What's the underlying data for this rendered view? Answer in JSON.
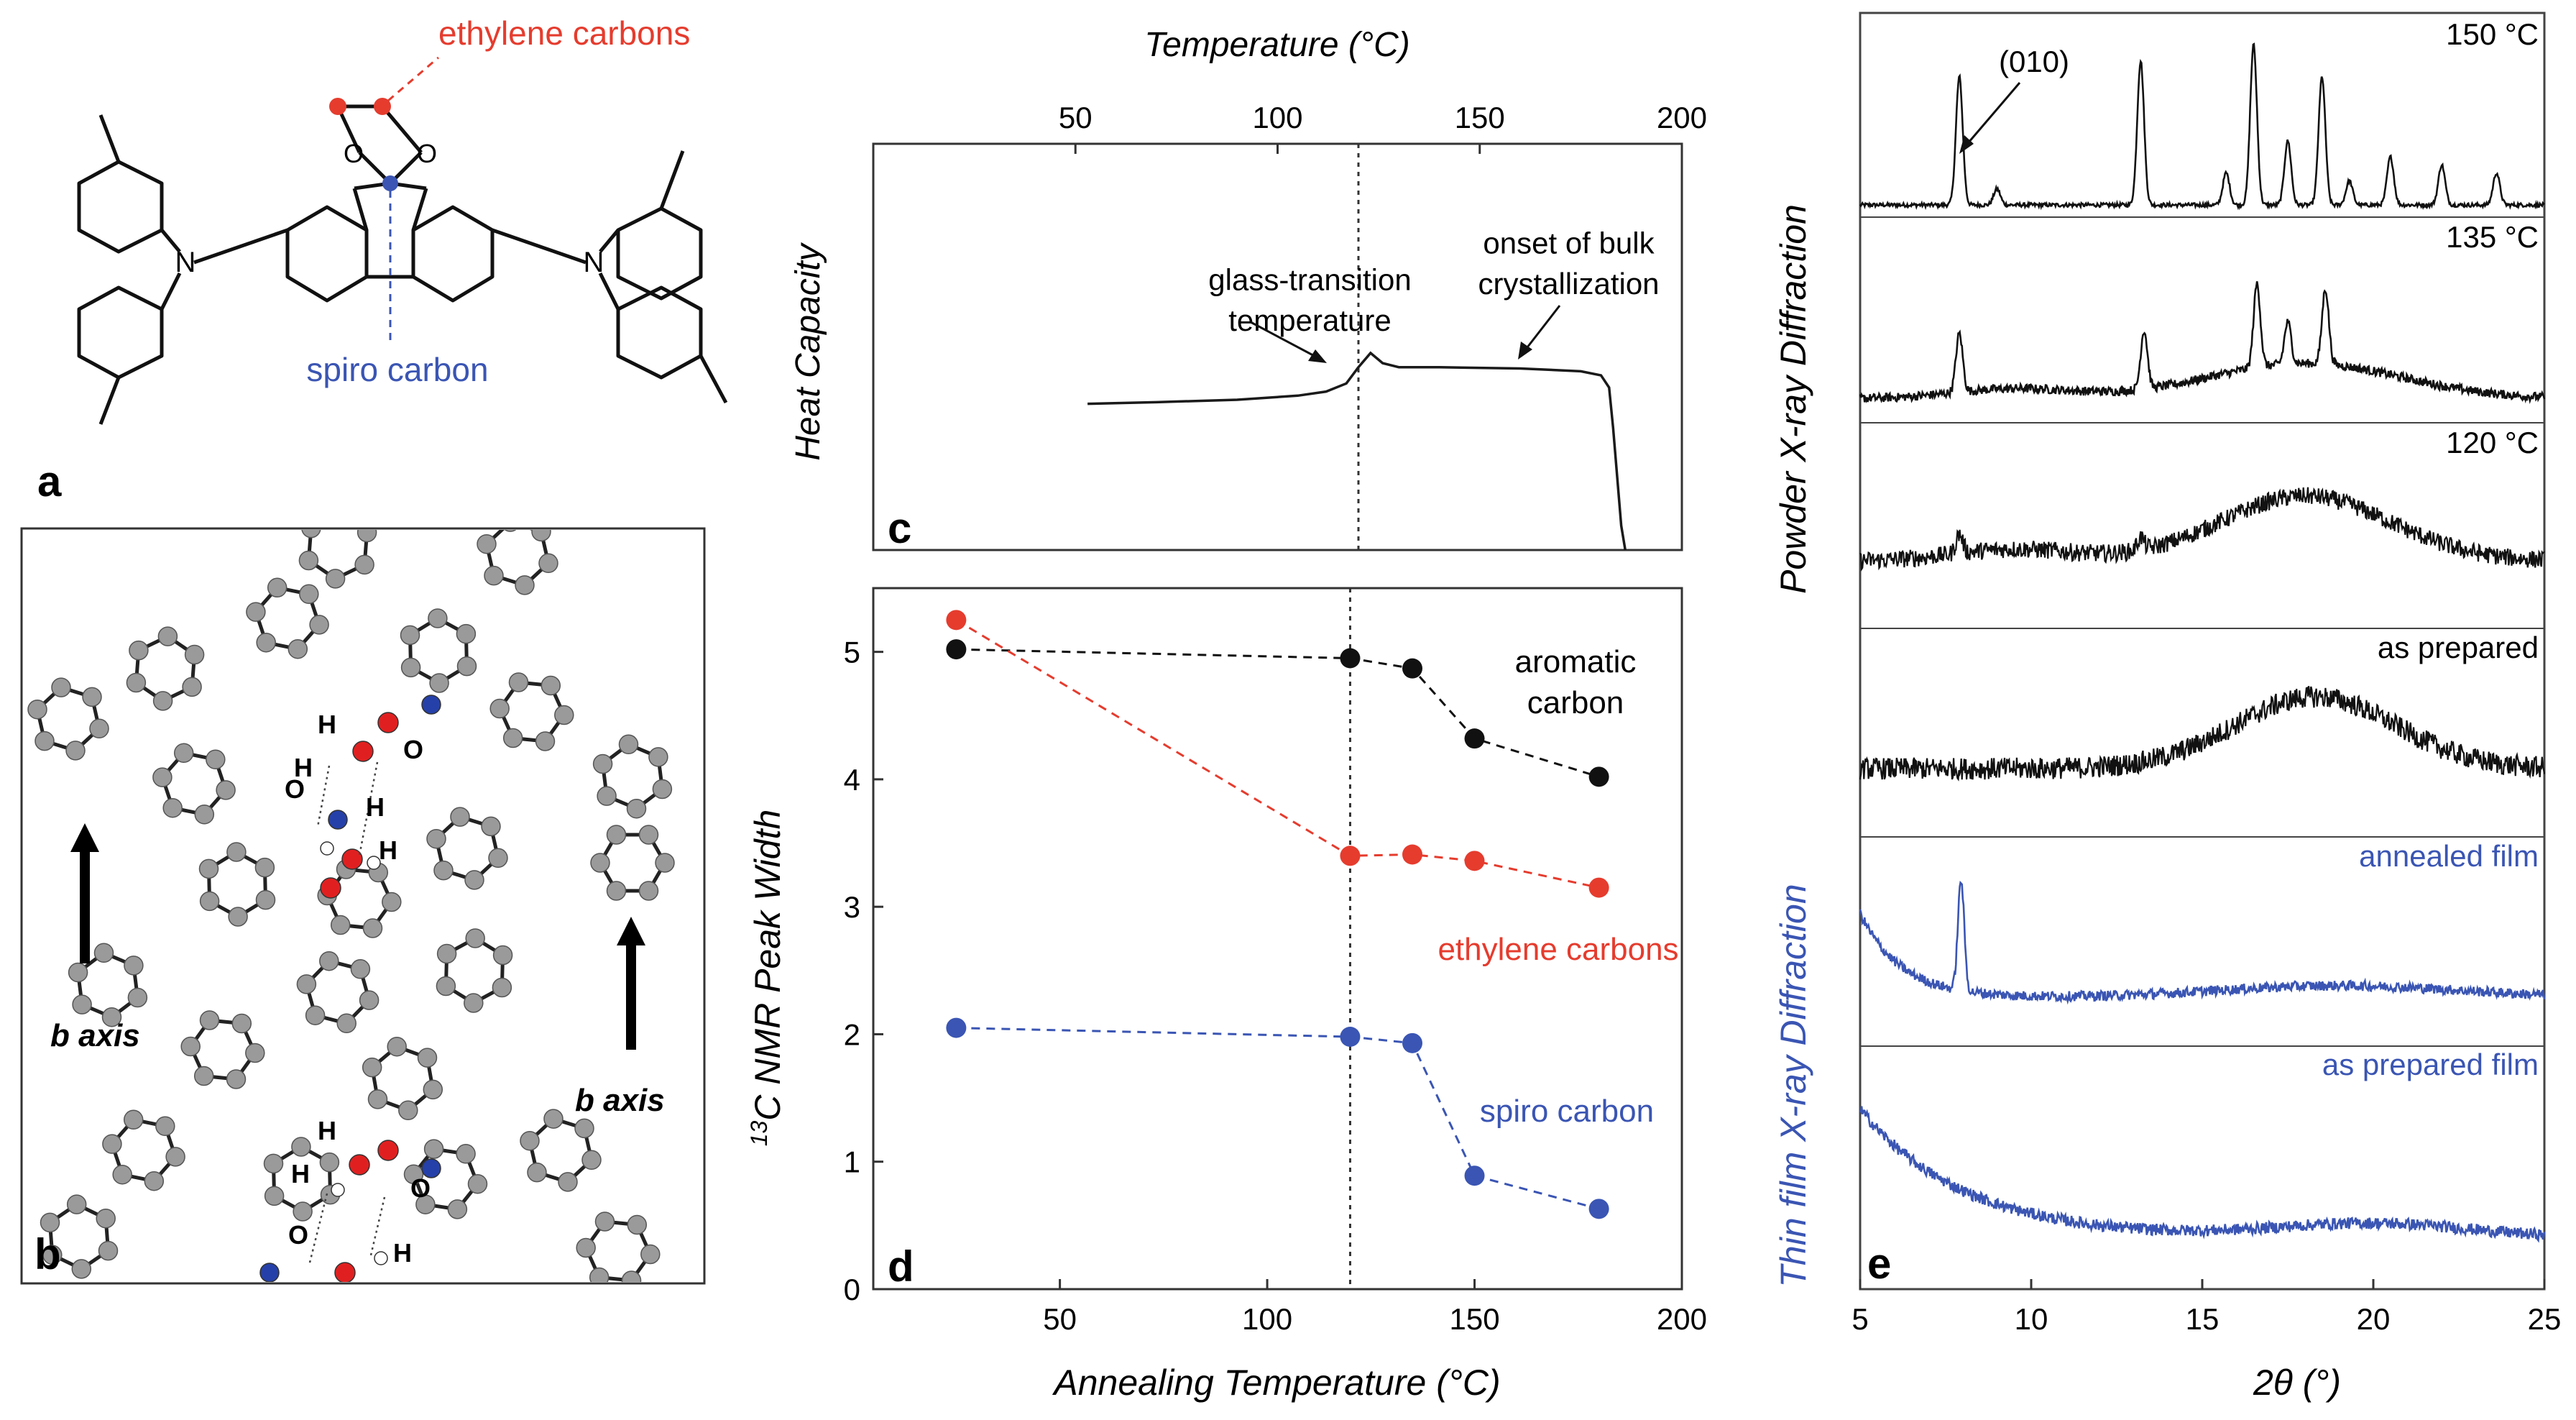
{
  "panel_labels": {
    "a": "a",
    "b": "b",
    "c": "c",
    "d": "d",
    "e": "e"
  },
  "panel_a": {
    "ethylene_label": "ethylene carbons",
    "spiro_label": "spiro carbon",
    "atom_N": "N",
    "atom_O": "O",
    "colors": {
      "oxygen_red": "#e53c2e",
      "spiro_blue": "#3a55b3"
    }
  },
  "panel_b": {
    "axis_label": "b axis",
    "atoms": {
      "H": "H",
      "O": "O"
    },
    "colors": {
      "carbon": "#9a9a9a",
      "oxygen": "#e02020",
      "nitrogen": "#2540a8",
      "hydrogen": "#ffffff"
    }
  },
  "chart_data": [
    {
      "type": "line",
      "panel": "c",
      "title": "",
      "xlabel": "Temperature (°C)",
      "ylabel": "Heat Capacity",
      "x_ticks": [
        "50",
        "100",
        "150",
        "200"
      ],
      "xlim": [
        0,
        200
      ],
      "ylim": [
        0,
        1
      ],
      "annotations": [
        {
          "text": "glass-transition",
          "x": 108,
          "y": 0.64
        },
        {
          "text": "temperature",
          "x": 108,
          "y": 0.54
        },
        {
          "text": "onset of bulk",
          "x": 172,
          "y": 0.73
        },
        {
          "text": "crystallization",
          "x": 172,
          "y": 0.63
        }
      ],
      "vline_x": 120,
      "series": [
        {
          "color": "#1a1a1a",
          "x": [
            53,
            70,
            90,
            105,
            112,
            117,
            120,
            123,
            126,
            130,
            140,
            160,
            175,
            180,
            182,
            183,
            184,
            185,
            186
          ],
          "y": [
            0.36,
            0.364,
            0.37,
            0.38,
            0.39,
            0.41,
            0.45,
            0.485,
            0.46,
            0.45,
            0.45,
            0.447,
            0.44,
            0.43,
            0.4,
            0.3,
            0.18,
            0.06,
            -0.05
          ]
        }
      ]
    },
    {
      "type": "scatter",
      "panel": "d",
      "title": "",
      "xlabel": "Annealing Temperature (°C)",
      "ylabel": "13C NMR Peak Width",
      "ylabel_sup": "13",
      "ylabel_main": "C NMR Peak Width",
      "xlim": [
        5,
        200
      ],
      "ylim": [
        0,
        5.5
      ],
      "x_ticks": [
        "50",
        "100",
        "150",
        "200"
      ],
      "y_ticks": [
        "0",
        "1",
        "2",
        "3",
        "4",
        "5"
      ],
      "vline_x": 120,
      "series": [
        {
          "name": "aromatic carbon",
          "name_lines": [
            "aromatic",
            "carbon"
          ],
          "color": "#111111",
          "x": [
            25,
            120,
            135,
            150,
            180
          ],
          "y": [
            5.02,
            4.95,
            4.87,
            4.32,
            4.02
          ]
        },
        {
          "name": "ethylene carbons",
          "name_lines": [
            "ethylene carbons"
          ],
          "color": "#e53c2e",
          "x": [
            25,
            120,
            135,
            150,
            180
          ],
          "y": [
            5.25,
            3.4,
            3.41,
            3.36,
            3.15
          ]
        },
        {
          "name": "spiro carbon",
          "name_lines": [
            "spiro carbon"
          ],
          "color": "#3a55b3",
          "x": [
            25,
            120,
            135,
            150,
            180
          ],
          "y": [
            2.05,
            1.98,
            1.93,
            0.89,
            0.63
          ]
        }
      ]
    },
    {
      "type": "line",
      "panel": "e",
      "title": "",
      "xlabel": "2θ (°)",
      "x_ticks": [
        "5",
        "10",
        "15",
        "20",
        "25"
      ],
      "xlim": [
        5,
        25
      ],
      "ylabel_powder": "Powder X-ray Diffraction",
      "ylabel_film": "Thin film X-ray Diffraction",
      "peak_annotation": "(010)",
      "traces": [
        {
          "label": "150 °C",
          "color": "#111111",
          "peaks": [
            [
              7.9,
              0.8
            ],
            [
              9.0,
              0.1
            ],
            [
              13.2,
              0.9
            ],
            [
              15.7,
              0.2
            ],
            [
              16.5,
              1.0
            ],
            [
              17.5,
              0.4
            ],
            [
              18.5,
              0.8
            ],
            [
              19.3,
              0.15
            ],
            [
              20.5,
              0.3
            ],
            [
              22.0,
              0.25
            ],
            [
              23.6,
              0.2
            ]
          ]
        },
        {
          "label": "135 °C",
          "color": "#111111",
          "peaks": [
            [
              7.9,
              0.35
            ],
            [
              13.3,
              0.35
            ],
            [
              16.6,
              0.5
            ],
            [
              17.5,
              0.25
            ],
            [
              18.6,
              0.45
            ]
          ]
        },
        {
          "label": "120 °C",
          "color": "#111111",
          "peaks": [
            [
              7.9,
              0.12
            ],
            [
              13.2,
              0.08
            ]
          ]
        },
        {
          "label": "as prepared",
          "color": "#111111",
          "peaks": []
        },
        {
          "label": "annealed film",
          "color": "#3a55b3",
          "peaks": [
            [
              7.95,
              0.55
            ]
          ]
        },
        {
          "label": "as prepared film",
          "color": "#3a55b3",
          "peaks": []
        }
      ]
    }
  ]
}
